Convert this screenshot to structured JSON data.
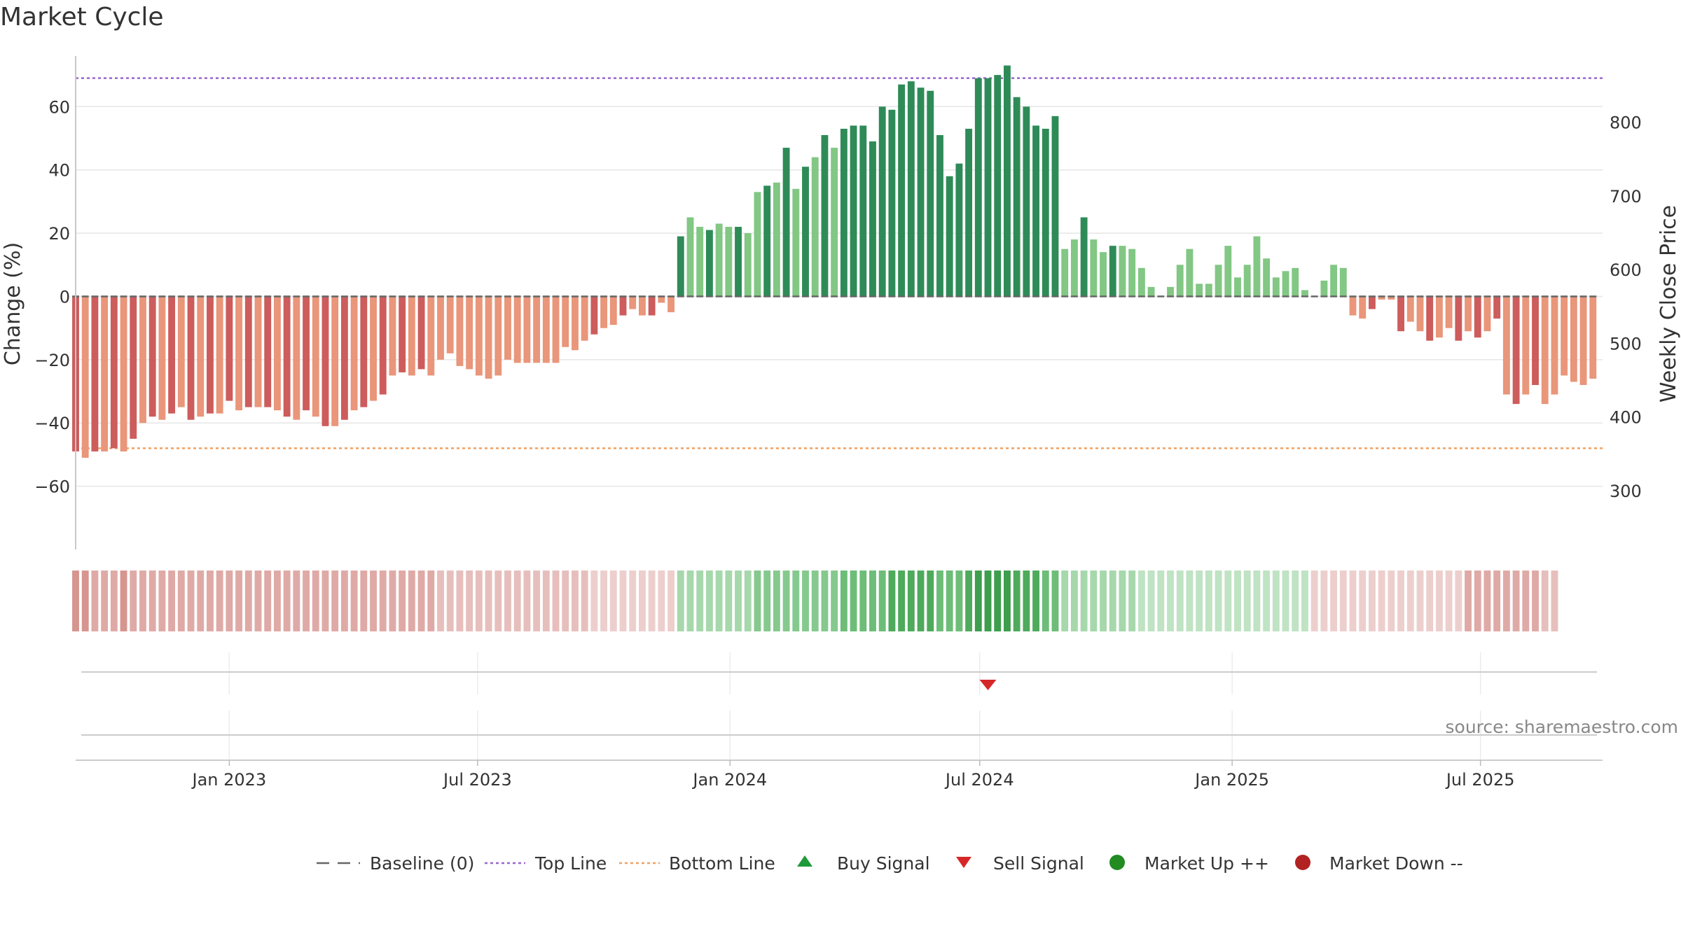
{
  "chart_data": {
    "type": "bar",
    "title": "Market Cycle",
    "ylabel": "Change (%)",
    "y2label": "Weekly Close Price",
    "ylim": [
      -80,
      76
    ],
    "y2lim": [
      220,
      890
    ],
    "yticks": [
      -60,
      -40,
      -20,
      0,
      20,
      40,
      60
    ],
    "yticks_labels": [
      "−60",
      "−40",
      "−20",
      "0",
      "20",
      "40",
      "60"
    ],
    "y2ticks": [
      300,
      400,
      500,
      600,
      700,
      800
    ],
    "y2ticks_labels": [
      "300",
      "400",
      "500",
      "600",
      "700",
      "800"
    ],
    "x_start": "2022-09-11",
    "x_end": "2025-09-28",
    "xticks": [
      {
        "date": "2023-01-01",
        "label": "Jan 2023"
      },
      {
        "date": "2023-07-01",
        "label": "Jul 2023"
      },
      {
        "date": "2024-01-01",
        "label": "Jan 2024"
      },
      {
        "date": "2024-07-01",
        "label": "Jul 2024"
      },
      {
        "date": "2025-01-01",
        "label": "Jan 2025"
      },
      {
        "date": "2025-07-01",
        "label": "Jul 2025"
      }
    ],
    "first_bar_date": "2022-09-11",
    "bar_interval_days": 7,
    "top_line": 69,
    "bottom_line": -48,
    "grid": true,
    "values": [
      -49,
      -51,
      -49,
      -49,
      -48,
      -49,
      -45,
      -40,
      -38,
      -39,
      -37,
      -35,
      -39,
      -38,
      -37,
      -37,
      -33,
      -36,
      -35,
      -35,
      -35,
      -36,
      -38,
      -39,
      -36,
      -38,
      -41,
      -41,
      -39,
      -36,
      -35,
      -33,
      -31,
      -25,
      -24,
      -25,
      -23,
      -25,
      -20,
      -18,
      -22,
      -23,
      -25,
      -26,
      -25,
      -20,
      -21,
      -21,
      -21,
      -21,
      -21,
      -16,
      -17,
      -14,
      -12,
      -10,
      -9,
      -6,
      -4,
      -6,
      -6,
      -2,
      -5,
      19,
      25,
      22,
      21,
      23,
      22,
      22,
      20,
      33,
      35,
      36,
      47,
      34,
      41,
      44,
      51,
      47,
      53,
      54,
      54,
      49,
      60,
      59,
      67,
      68,
      66,
      65,
      51,
      38,
      42,
      53,
      69,
      69,
      70,
      73,
      63,
      60,
      54,
      53,
      57,
      15,
      18,
      25,
      18,
      14,
      16,
      16,
      15,
      9,
      3,
      0,
      3,
      10,
      15,
      4,
      4,
      10,
      16,
      6,
      10,
      19,
      12,
      6,
      8,
      9,
      2,
      0,
      5,
      10,
      9,
      -6,
      -7,
      -4,
      -1,
      -1,
      -11,
      -8,
      -11,
      -14,
      -13,
      -10,
      -14,
      -11,
      -13,
      -11,
      -7,
      -31,
      -34,
      -31,
      -28,
      -34,
      -31,
      -25,
      -27,
      -28,
      -26
    ],
    "strength": [
      -4,
      -4,
      -3,
      -3,
      -3,
      -4,
      -3,
      -3,
      -3,
      -3,
      -3,
      -3,
      -3,
      -3,
      -3,
      -3,
      -3,
      -3,
      -3,
      -3,
      -3,
      -3,
      -3,
      -3,
      -3,
      -3,
      -3,
      -3,
      -3,
      -3,
      -3,
      -3,
      -3,
      -3,
      -3,
      -3,
      -3,
      -3,
      -2,
      -2,
      -2,
      -2,
      -2,
      -2,
      -2,
      -2,
      -2,
      -2,
      -2,
      -2,
      -2,
      -2,
      -2,
      -2,
      -1,
      -1,
      -1,
      -1,
      -1,
      -1,
      -1,
      -1,
      -1,
      2,
      2,
      2,
      2,
      2,
      2,
      2,
      2,
      3,
      3,
      3,
      3,
      3,
      3,
      3,
      3,
      3,
      4,
      4,
      4,
      4,
      4,
      5,
      5,
      5,
      5,
      5,
      4,
      4,
      4,
      5,
      6,
      6,
      6,
      6,
      5,
      5,
      5,
      4,
      4,
      2,
      2,
      2,
      2,
      2,
      2,
      2,
      2,
      1,
      1,
      1,
      1,
      1,
      1,
      1,
      1,
      1,
      1,
      1,
      1,
      1,
      1,
      1,
      1,
      1,
      1,
      -1,
      -1,
      -1,
      -1,
      -1,
      -1,
      -1,
      -1,
      -1,
      -1,
      -1,
      -1,
      -1,
      -1,
      -1,
      -1,
      -3,
      -3,
      -3,
      -3,
      -3,
      -3,
      -3,
      -3,
      -2,
      -2
    ],
    "signals": [
      {
        "type": "sell",
        "date": "2024-07-07"
      }
    ],
    "colors": {
      "up_strong": "#2e8b57",
      "up_weak": "#82c784",
      "down_strong": "#cd5c5c",
      "down_weak": "#e9967a",
      "top_line": "#9966cc",
      "bottom_line": "#f0a060",
      "baseline": "#666666",
      "buy": "#1e9a3a",
      "sell": "#d62728",
      "market_up": "#228b22",
      "market_down": "#b22222"
    },
    "source": "source: sharemaestro.com",
    "legend_position": "bottom-center",
    "legend": [
      {
        "key": "baseline",
        "label": "Baseline (0)"
      },
      {
        "key": "top",
        "label": "Top Line"
      },
      {
        "key": "bottom",
        "label": "Bottom Line"
      },
      {
        "key": "buy",
        "label": "Buy Signal"
      },
      {
        "key": "sell",
        "label": "Sell Signal"
      },
      {
        "key": "mup",
        "label": "Market Up ++"
      },
      {
        "key": "mdown",
        "label": "Market Down --"
      }
    ]
  }
}
